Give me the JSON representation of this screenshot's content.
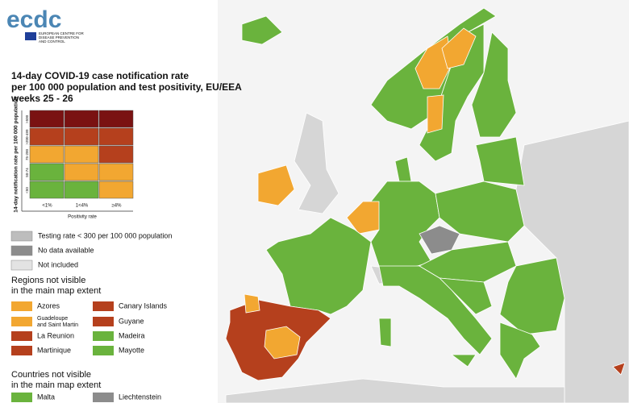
{
  "logo": {
    "name": "ecdc",
    "subtitle": [
      "EUROPEAN CENTRE FOR",
      "DISEASE PREVENTION",
      "AND CONTROL"
    ]
  },
  "title": [
    "14-day COVID-19 case notification rate",
    "per 100 000 population and test positivity, EU/EEA",
    "weeks 25 - 26"
  ],
  "matrix": {
    "y_label": "14-day notification rate per 100 000 population",
    "rows": [
      ">500",
      ">200-499",
      "75-200",
      "50-74",
      "<50"
    ],
    "columns": [
      "<1%",
      "1<4%",
      "≥4%"
    ],
    "x_label": "Positivity rate",
    "colors": [
      [
        "#7a1212",
        "#7a1212",
        "#7a1212"
      ],
      [
        "#b5401d",
        "#b5401d",
        "#b5401d"
      ],
      [
        "#f2a731",
        "#f2a731",
        "#b5401d"
      ],
      [
        "#6ab33d",
        "#f2a731",
        "#f2a731"
      ],
      [
        "#6ab33d",
        "#6ab33d",
        "#f2a731"
      ]
    ]
  },
  "legend": [
    {
      "label": "Testing rate < 300 per 100 000 population",
      "color": "#bdbdbd"
    },
    {
      "label": "No data available",
      "color": "#8c8c8c"
    },
    {
      "label": "Not included",
      "color": "#e3e3e3"
    }
  ],
  "regions": {
    "heading": [
      "Regions not visible",
      "in the main map extent"
    ],
    "items": [
      {
        "label": [
          "Azores"
        ],
        "color": "#f2a731"
      },
      {
        "label": [
          "Guadeloupe",
          "and Saint Martin"
        ],
        "color": "#f2a731"
      },
      {
        "label": [
          "La Reunion"
        ],
        "color": "#b5401d"
      },
      {
        "label": [
          "Martinique"
        ],
        "color": "#b5401d"
      },
      {
        "label": [
          "Canary Islands"
        ],
        "color": "#b5401d"
      },
      {
        "label": [
          "Guyane"
        ],
        "color": "#b5401d"
      },
      {
        "label": [
          "Madeira"
        ],
        "color": "#6ab33d"
      },
      {
        "label": [
          "Mayotte"
        ],
        "color": "#6ab33d"
      }
    ]
  },
  "countries": {
    "heading": [
      "Countries not visible",
      "in the main map extent"
    ],
    "items": [
      {
        "label": [
          "Malta"
        ],
        "color": "#6ab33d"
      },
      {
        "label": [
          "Liechtenstein"
        ],
        "color": "#8c8c8c"
      }
    ]
  }
}
